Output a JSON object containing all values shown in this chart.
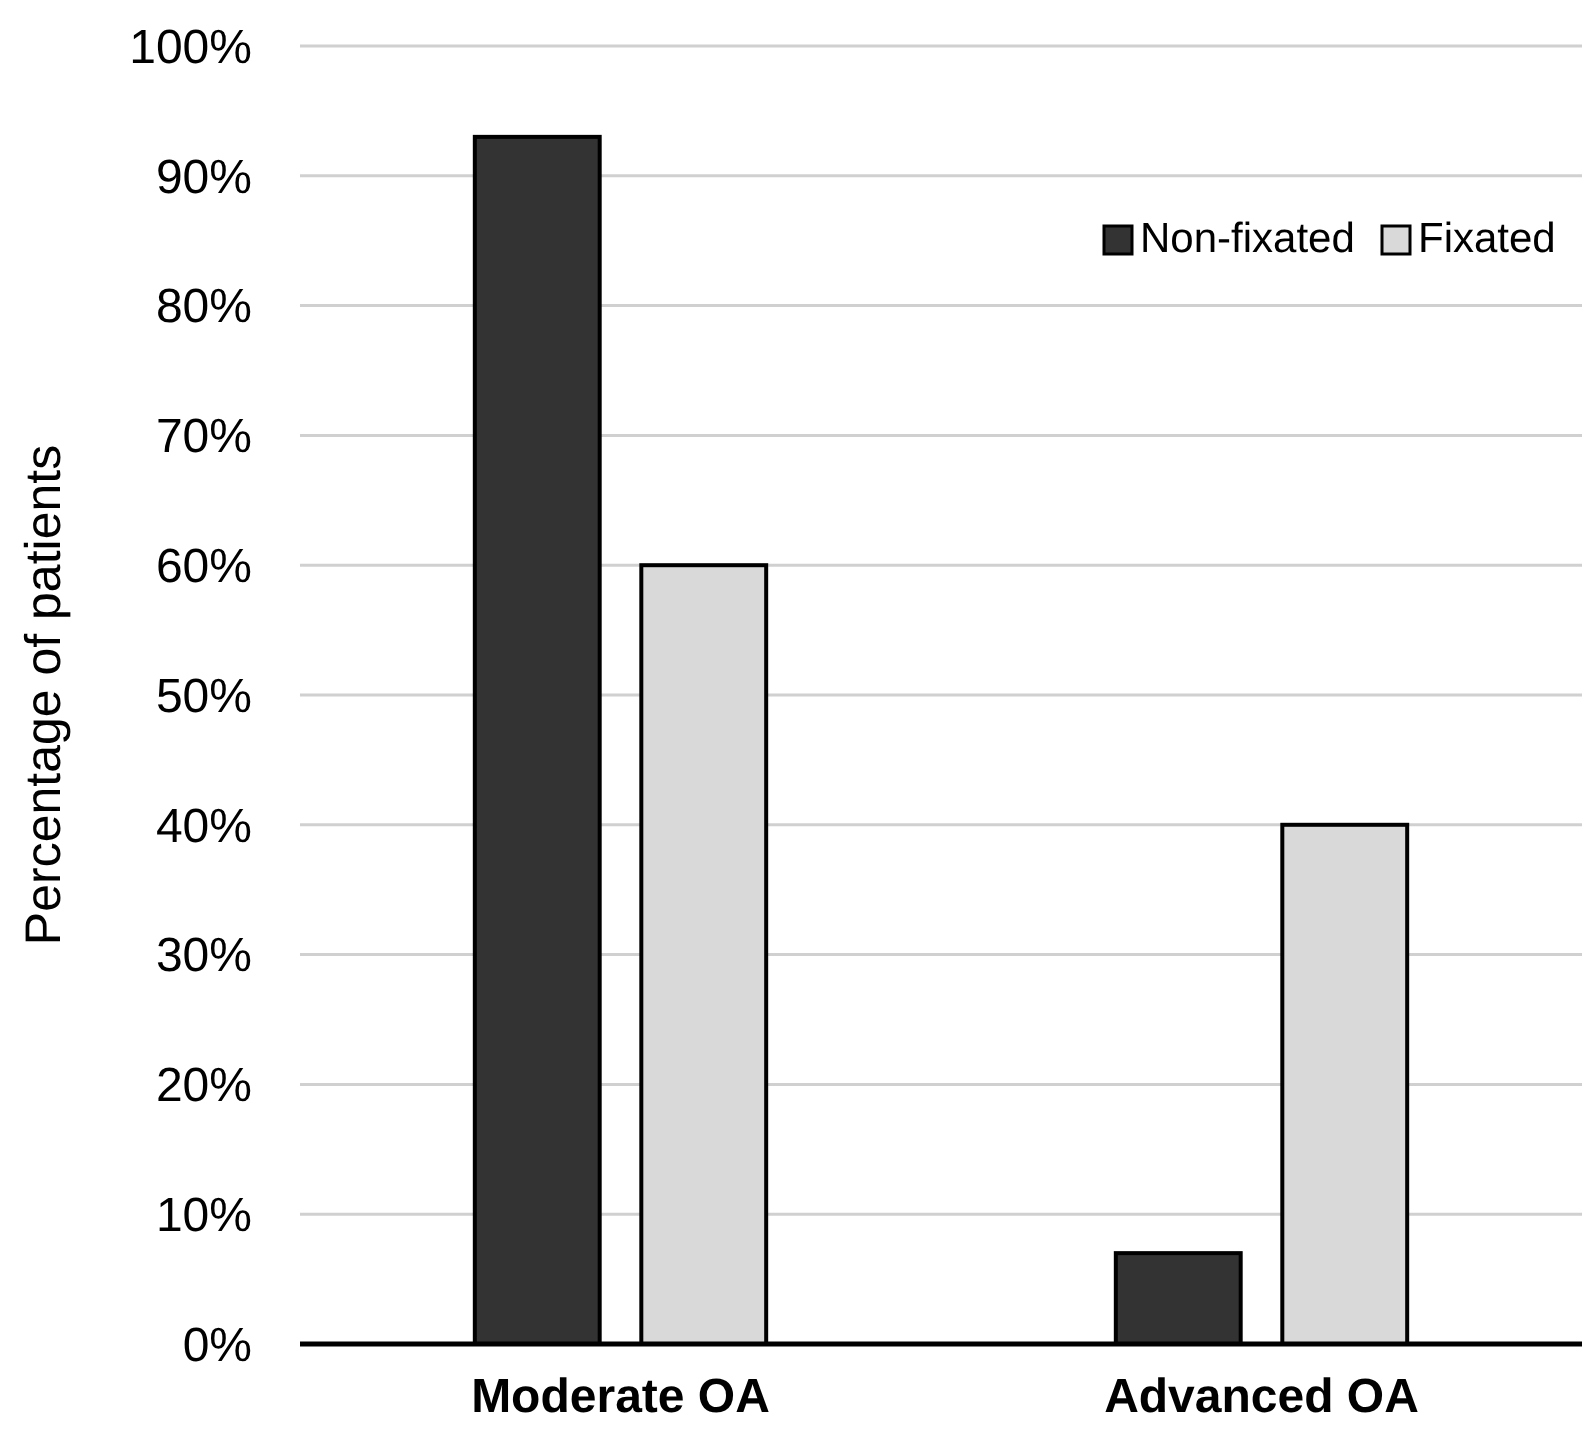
{
  "chart_data": {
    "type": "bar",
    "ylabel": "Percentage of patients",
    "categories": [
      "Moderate OA",
      "Advanced OA"
    ],
    "series": [
      {
        "name": "Non-fixated",
        "color": "#333333",
        "values": [
          93,
          7
        ]
      },
      {
        "name": "Fixated",
        "color": "#d9d9d9",
        "values": [
          60,
          40
        ]
      }
    ],
    "ylim": [
      0,
      100
    ],
    "yticks": [
      {
        "value": 0,
        "label": "0%"
      },
      {
        "value": 10,
        "label": "10%"
      },
      {
        "value": 20,
        "label": "20%"
      },
      {
        "value": 30,
        "label": "30%"
      },
      {
        "value": 40,
        "label": "40%"
      },
      {
        "value": 50,
        "label": "50%"
      },
      {
        "value": 60,
        "label": "60%"
      },
      {
        "value": 70,
        "label": "70%"
      },
      {
        "value": 80,
        "label": "80%"
      },
      {
        "value": 90,
        "label": "90%"
      },
      {
        "value": 100,
        "label": "100%"
      }
    ],
    "grid": "y",
    "legend": "top right"
  }
}
